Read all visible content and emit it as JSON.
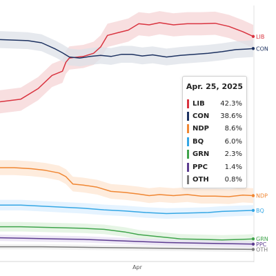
{
  "chart_data": {
    "type": "line",
    "x_tick_labels": [
      "Apr"
    ],
    "ylim": [
      0,
      50
    ],
    "grid": false,
    "legend": "end-of-line labels",
    "highlight_date": "Apr. 25, 2025",
    "series": [
      {
        "name": "LIB",
        "color": "#d9333f",
        "band_color": "#f6d4d6",
        "values": [
          [
            0,
            32.0
          ],
          [
            30,
            32.5
          ],
          [
            55,
            34.5
          ],
          [
            75,
            37.0
          ],
          [
            90,
            37.8
          ],
          [
            95,
            39.5
          ],
          [
            100,
            40.3
          ],
          [
            120,
            40.6
          ],
          [
            135,
            41.2
          ],
          [
            145,
            42.4
          ],
          [
            155,
            44.6
          ],
          [
            170,
            45.1
          ],
          [
            185,
            45.6
          ],
          [
            200,
            46.8
          ],
          [
            215,
            46.6
          ],
          [
            230,
            47.0
          ],
          [
            250,
            46.6
          ],
          [
            270,
            46.8
          ],
          [
            290,
            46.8
          ],
          [
            310,
            46.9
          ],
          [
            330,
            46.3
          ],
          [
            350,
            45.3
          ],
          [
            365,
            44.4
          ]
        ]
      },
      {
        "name": "CON",
        "color": "#1c3160",
        "band_color": "#dde1e8",
        "values": [
          [
            0,
            43.8
          ],
          [
            20,
            43.7
          ],
          [
            40,
            43.6
          ],
          [
            60,
            43.2
          ],
          [
            80,
            42.0
          ],
          [
            90,
            41.3
          ],
          [
            100,
            40.5
          ],
          [
            115,
            40.3
          ],
          [
            130,
            40.6
          ],
          [
            145,
            40.8
          ],
          [
            160,
            40.6
          ],
          [
            175,
            41.0
          ],
          [
            190,
            41.0
          ],
          [
            205,
            40.7
          ],
          [
            220,
            40.9
          ],
          [
            240,
            40.5
          ],
          [
            260,
            40.8
          ],
          [
            280,
            41.0
          ],
          [
            300,
            41.2
          ],
          [
            320,
            41.5
          ],
          [
            340,
            41.9
          ],
          [
            355,
            42.0
          ],
          [
            365,
            42.1
          ]
        ]
      },
      {
        "name": "NDP",
        "color": "#f08632",
        "band_color": "#fde6d2",
        "values": [
          [
            0,
            19.5
          ],
          [
            20,
            19.5
          ],
          [
            45,
            19.3
          ],
          [
            65,
            19.0
          ],
          [
            85,
            18.5
          ],
          [
            95,
            17.8
          ],
          [
            105,
            16.4
          ],
          [
            120,
            16.2
          ],
          [
            140,
            15.8
          ],
          [
            160,
            15.0
          ],
          [
            180,
            14.8
          ],
          [
            200,
            14.5
          ],
          [
            215,
            14.2
          ],
          [
            230,
            14.4
          ],
          [
            250,
            14.2
          ],
          [
            270,
            14.4
          ],
          [
            290,
            14.1
          ],
          [
            310,
            14.1
          ],
          [
            330,
            14.0
          ],
          [
            350,
            14.3
          ],
          [
            365,
            14.2
          ]
        ]
      },
      {
        "name": "BQ",
        "color": "#33a6e4",
        "band_color": "#dcefff",
        "values": [
          [
            0,
            12.4
          ],
          [
            30,
            12.4
          ],
          [
            60,
            12.2
          ],
          [
            90,
            12.0
          ],
          [
            120,
            11.8
          ],
          [
            150,
            11.5
          ],
          [
            180,
            11.3
          ],
          [
            210,
            11.0
          ],
          [
            240,
            10.8
          ],
          [
            270,
            10.9
          ],
          [
            300,
            11.0
          ],
          [
            320,
            11.2
          ],
          [
            340,
            11.3
          ],
          [
            365,
            11.4
          ]
        ]
      },
      {
        "name": "GRN",
        "color": "#3ea34a",
        "band_color": "#ddf2dc",
        "values": [
          [
            0,
            8.3
          ],
          [
            30,
            8.3
          ],
          [
            60,
            8.2
          ],
          [
            90,
            8.1
          ],
          [
            120,
            8.0
          ],
          [
            150,
            7.8
          ],
          [
            180,
            7.3
          ],
          [
            200,
            6.8
          ],
          [
            230,
            6.4
          ],
          [
            260,
            6.0
          ],
          [
            290,
            5.9
          ],
          [
            320,
            5.8
          ],
          [
            350,
            5.9
          ],
          [
            365,
            6.0
          ]
        ]
      },
      {
        "name": "PPC",
        "color": "#5b3a8f",
        "band_color": "#e6ddf1",
        "values": [
          [
            0,
            6.2
          ],
          [
            40,
            6.1
          ],
          [
            80,
            6.0
          ],
          [
            120,
            5.9
          ],
          [
            160,
            5.7
          ],
          [
            200,
            5.5
          ],
          [
            240,
            5.3
          ],
          [
            280,
            5.2
          ],
          [
            320,
            5.1
          ],
          [
            365,
            5.0
          ]
        ]
      },
      {
        "name": "OTH",
        "color": "#7a7a7a",
        "band_color": "#eeeeee",
        "values": [
          [
            0,
            4.5
          ],
          [
            60,
            4.5
          ],
          [
            120,
            4.4
          ],
          [
            180,
            4.3
          ],
          [
            240,
            4.2
          ],
          [
            300,
            4.1
          ],
          [
            365,
            4.0
          ]
        ]
      }
    ],
    "tooltip": {
      "date": "Apr. 25, 2025",
      "rows": [
        {
          "name": "LIB",
          "value": "42.3%",
          "color": "#d9333f"
        },
        {
          "name": "CON",
          "value": "38.6%",
          "color": "#1c3160"
        },
        {
          "name": "NDP",
          "value": "8.6%",
          "color": "#f08632"
        },
        {
          "name": "BQ",
          "value": "6.0%",
          "color": "#33a6e4"
        },
        {
          "name": "GRN",
          "value": "2.3%",
          "color": "#3ea34a"
        },
        {
          "name": "PPC",
          "value": "1.4%",
          "color": "#5b3a8f"
        },
        {
          "name": "OTH",
          "value": "0.8%",
          "color": "#7a7a7a"
        }
      ]
    }
  }
}
